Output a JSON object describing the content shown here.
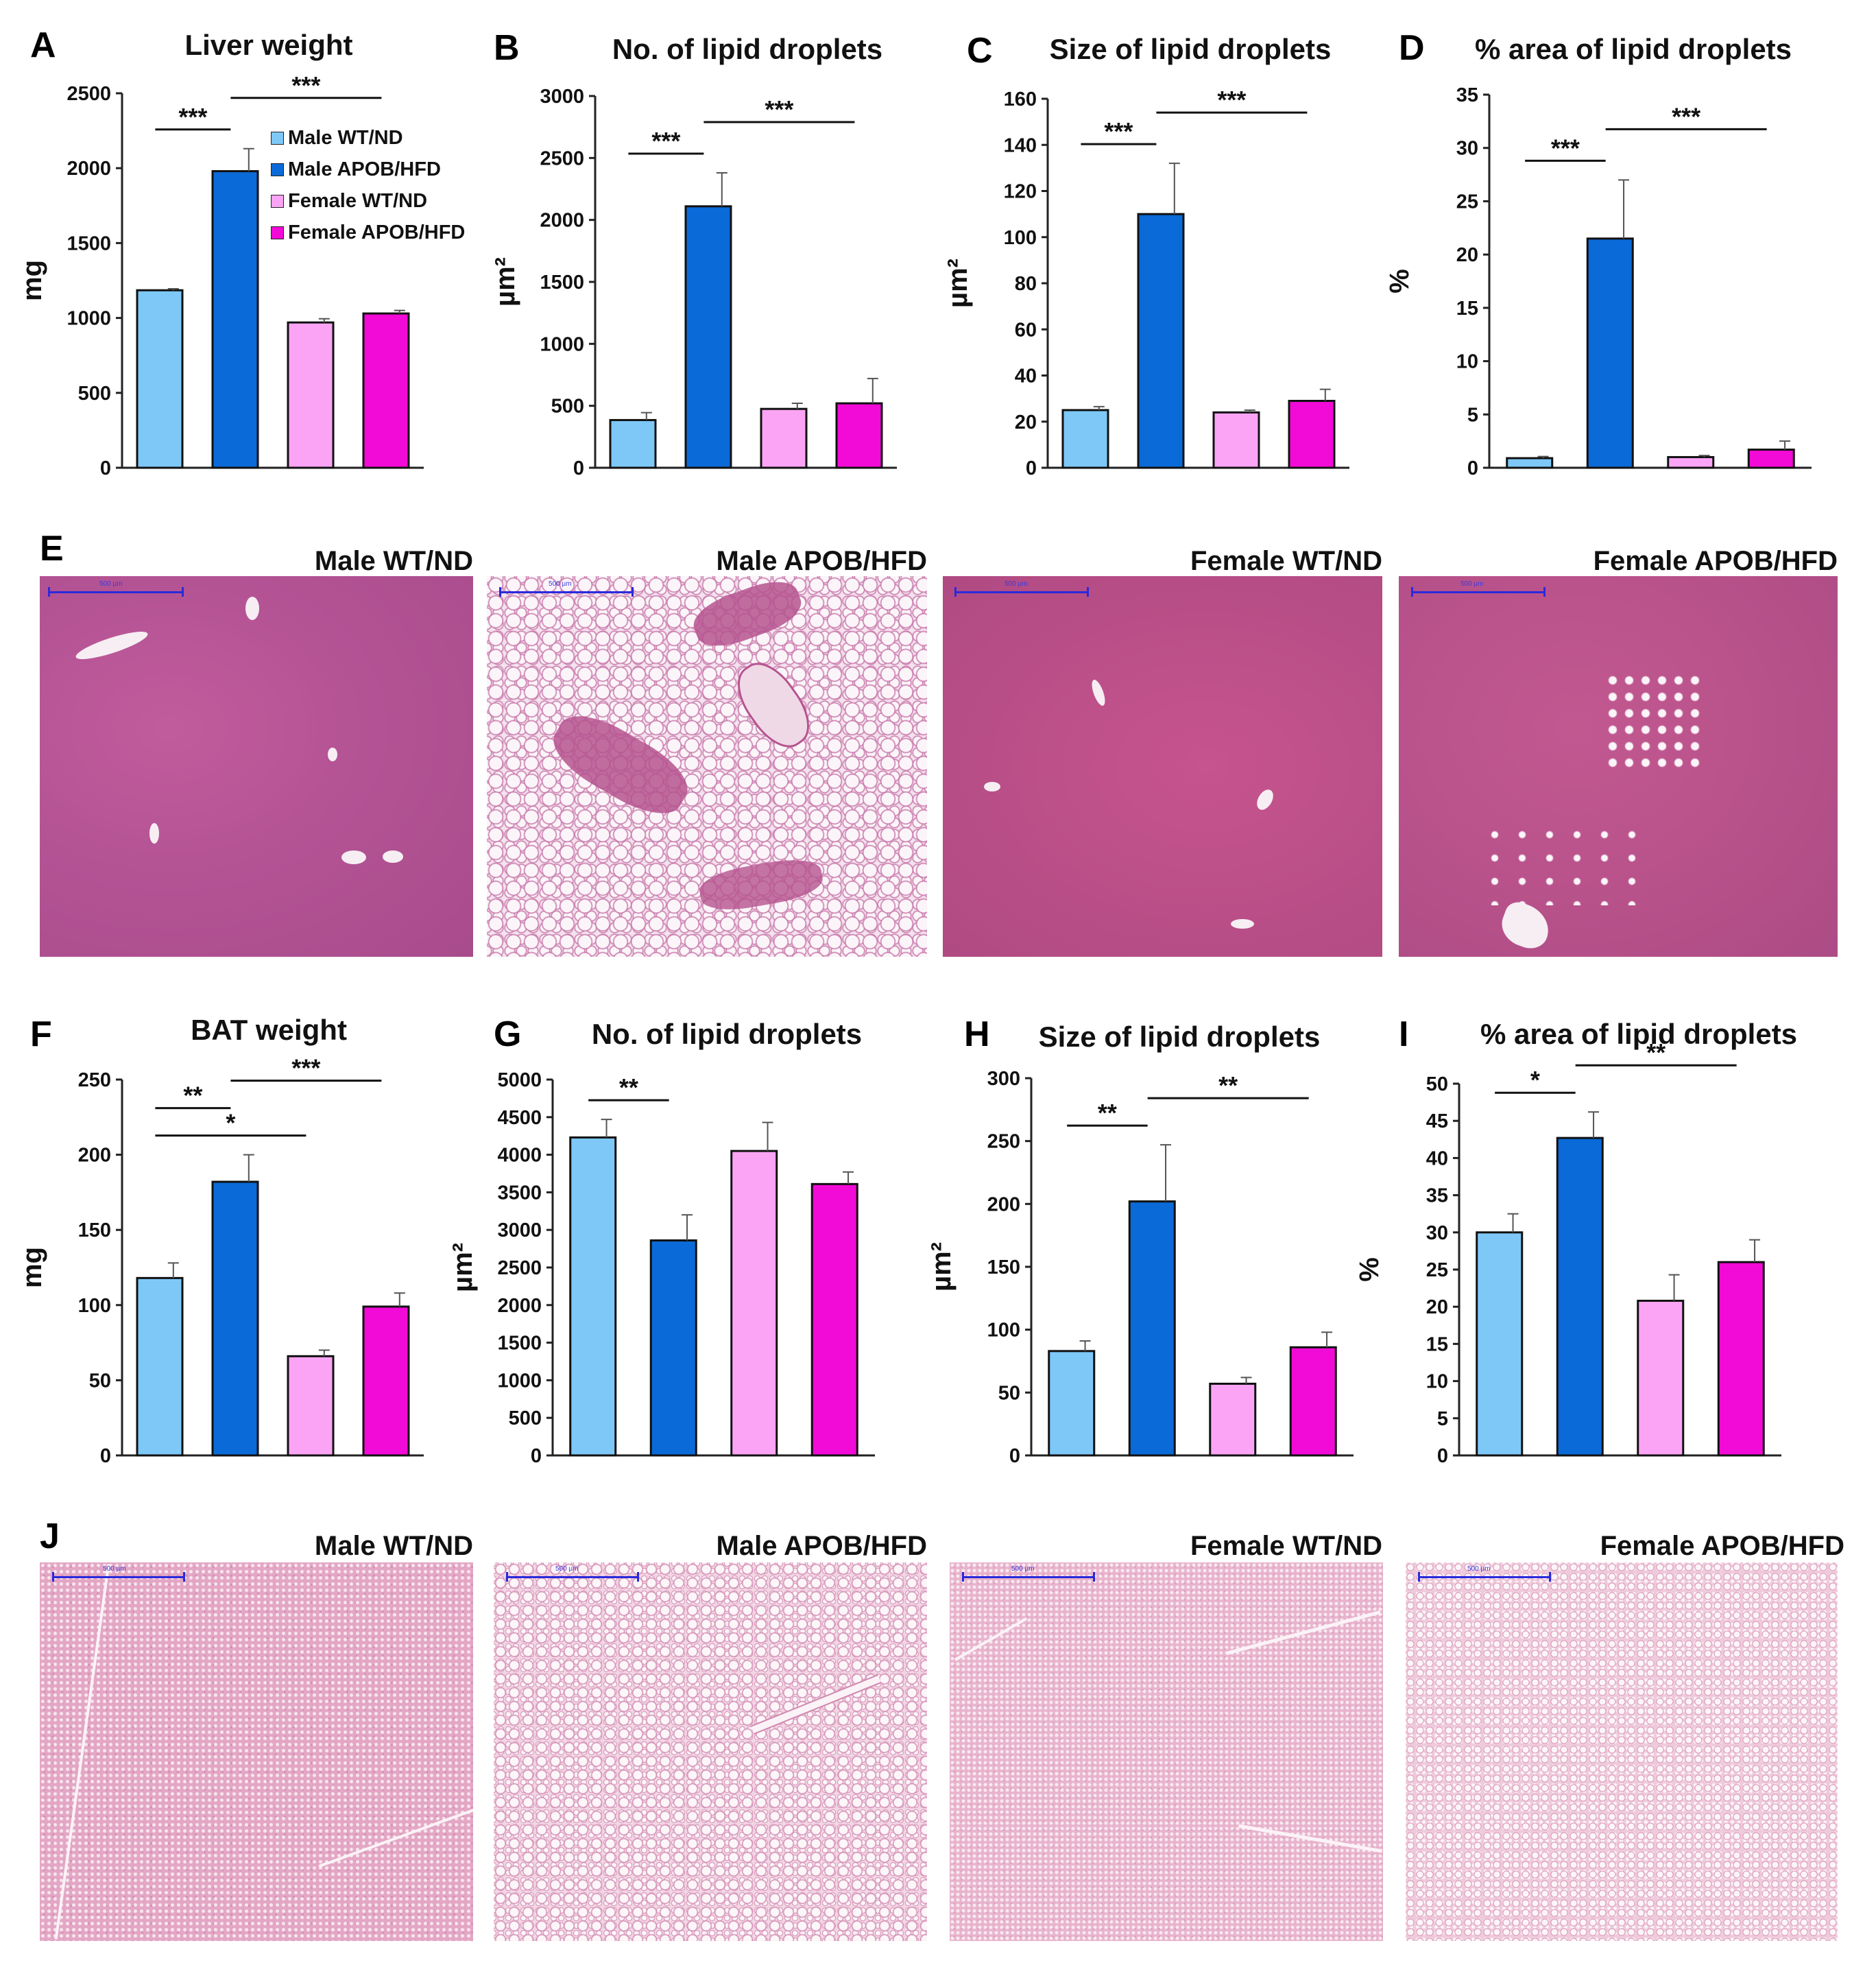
{
  "legend": [
    {
      "label": "Male WT/ND",
      "color": "#7ec8f8"
    },
    {
      "label": "Male APOB/HFD",
      "color": "#0a6ad8"
    },
    {
      "label": "Female WT/ND",
      "color": "#fba4f5"
    },
    {
      "label": "Female APOB/HFD",
      "color": "#f20ad6"
    }
  ],
  "panel_letters": {
    "A": "A",
    "B": "B",
    "C": "C",
    "D": "D",
    "E": "E",
    "F": "F",
    "G": "G",
    "H": "H",
    "I": "I",
    "J": "J"
  },
  "histology": {
    "E": {
      "labels": [
        "Male WT/ND",
        "Male APOB/HFD",
        "Female WT/ND",
        "Female APOB/HFD"
      ],
      "scale_text": "500 µm"
    },
    "J": {
      "labels": [
        "Male WT/ND",
        "Male APOB/HFD",
        "Female WT/ND",
        "Female APOB/HFD"
      ],
      "scale_text": "500 µm"
    }
  },
  "chart_data": [
    {
      "id": "A",
      "type": "bar",
      "title": "Liver weight",
      "ylabel": "mg",
      "ylim": [
        0,
        2500
      ],
      "yticks": [
        0,
        500,
        1000,
        1500,
        2000,
        2500
      ],
      "categories": [
        "Male WT/ND",
        "Male APOB/HFD",
        "Female WT/ND",
        "Female APOB/HFD"
      ],
      "values": [
        1185,
        1980,
        970,
        1030
      ],
      "errors": [
        10,
        150,
        25,
        20
      ],
      "legend_shown": true,
      "legend_position": "top-right",
      "significance": [
        {
          "from": 0,
          "to": 1,
          "label": "***"
        },
        {
          "from": 1,
          "to": 3,
          "label": "***"
        }
      ]
    },
    {
      "id": "B",
      "type": "bar",
      "title": "No. of lipid droplets",
      "ylabel": "µm²",
      "ylim": [
        0,
        3000
      ],
      "yticks": [
        0,
        500,
        1000,
        1500,
        2000,
        2500,
        3000
      ],
      "categories": [
        "Male WT/ND",
        "Male APOB/HFD",
        "Female WT/ND",
        "Female APOB/HFD"
      ],
      "values": [
        385,
        2110,
        475,
        520
      ],
      "errors": [
        60,
        270,
        45,
        200
      ],
      "significance": [
        {
          "from": 0,
          "to": 1,
          "label": "***"
        },
        {
          "from": 1,
          "to": 3,
          "label": "***"
        }
      ]
    },
    {
      "id": "C",
      "type": "bar",
      "title": "Size of lipid droplets",
      "ylabel": "µm²",
      "ylim": [
        0,
        160
      ],
      "yticks": [
        0,
        20,
        40,
        60,
        80,
        100,
        120,
        140,
        160
      ],
      "categories": [
        "Male WT/ND",
        "Male APOB/HFD",
        "Female WT/ND",
        "Female APOB/HFD"
      ],
      "values": [
        25,
        110,
        24,
        29
      ],
      "errors": [
        1.5,
        22,
        1,
        5
      ],
      "significance": [
        {
          "from": 0,
          "to": 1,
          "label": "***"
        },
        {
          "from": 1,
          "to": 3,
          "label": "***"
        }
      ]
    },
    {
      "id": "D",
      "type": "bar",
      "title": "% area of lipid droplets",
      "ylabel": "%",
      "ylim": [
        0,
        35
      ],
      "yticks": [
        0,
        5,
        10,
        15,
        20,
        25,
        30,
        35
      ],
      "categories": [
        "Male WT/ND",
        "Male APOB/HFD",
        "Female WT/ND",
        "Female APOB/HFD"
      ],
      "values": [
        0.9,
        21.5,
        1.0,
        1.7
      ],
      "errors": [
        0.15,
        5.5,
        0.15,
        0.8
      ],
      "significance": [
        {
          "from": 0,
          "to": 1,
          "label": "***"
        },
        {
          "from": 1,
          "to": 3,
          "label": "***"
        }
      ]
    },
    {
      "id": "F",
      "type": "bar",
      "title": "BAT weight",
      "ylabel": "mg",
      "ylim": [
        0,
        250
      ],
      "yticks": [
        0,
        50,
        100,
        150,
        200,
        250
      ],
      "categories": [
        "Male WT/ND",
        "Male APOB/HFD",
        "Female WT/ND",
        "Female APOB/HFD"
      ],
      "values": [
        118,
        182,
        66,
        99
      ],
      "errors": [
        10,
        18,
        4,
        9
      ],
      "significance": [
        {
          "from": 0,
          "to": 2,
          "label": "*"
        },
        {
          "from": 0,
          "to": 1,
          "label": "**"
        },
        {
          "from": 1,
          "to": 3,
          "label": "***"
        }
      ]
    },
    {
      "id": "G",
      "type": "bar",
      "title": "No. of lipid droplets",
      "ylabel": "µm²",
      "ylim": [
        0,
        5000
      ],
      "yticks": [
        0,
        500,
        1000,
        1500,
        2000,
        2500,
        3000,
        3500,
        4000,
        4500,
        5000
      ],
      "categories": [
        "Male WT/ND",
        "Male APOB/HFD",
        "Female WT/ND",
        "Female APOB/HFD"
      ],
      "values": [
        4230,
        2860,
        4050,
        3610
      ],
      "errors": [
        240,
        340,
        380,
        160
      ],
      "significance": [
        {
          "from": 0,
          "to": 1,
          "label": "**"
        }
      ]
    },
    {
      "id": "H",
      "type": "bar",
      "title": "Size of lipid droplets",
      "ylabel": "µm²",
      "ylim": [
        0,
        300
      ],
      "yticks": [
        0,
        50,
        100,
        150,
        200,
        250,
        300
      ],
      "categories": [
        "Male WT/ND",
        "Male APOB/HFD",
        "Female WT/ND",
        "Female APOB/HFD"
      ],
      "values": [
        83,
        202,
        57,
        86
      ],
      "errors": [
        8,
        45,
        5,
        12
      ],
      "significance": [
        {
          "from": 0,
          "to": 1,
          "label": "**"
        },
        {
          "from": 1,
          "to": 3,
          "label": "**"
        }
      ]
    },
    {
      "id": "I",
      "type": "bar",
      "title": "% area of lipid droplets",
      "ylabel": "%",
      "ylim": [
        0,
        50
      ],
      "yticks": [
        0,
        5,
        10,
        15,
        20,
        25,
        30,
        35,
        40,
        45,
        50
      ],
      "categories": [
        "Male WT/ND",
        "Male APOB/HFD",
        "Female WT/ND",
        "Female APOB/HFD"
      ],
      "values": [
        30,
        42.7,
        20.8,
        26
      ],
      "errors": [
        2.5,
        3.5,
        3.5,
        3
      ],
      "significance": [
        {
          "from": 0,
          "to": 1,
          "label": "*"
        },
        {
          "from": 1,
          "to": 3,
          "label": "**"
        }
      ]
    }
  ]
}
